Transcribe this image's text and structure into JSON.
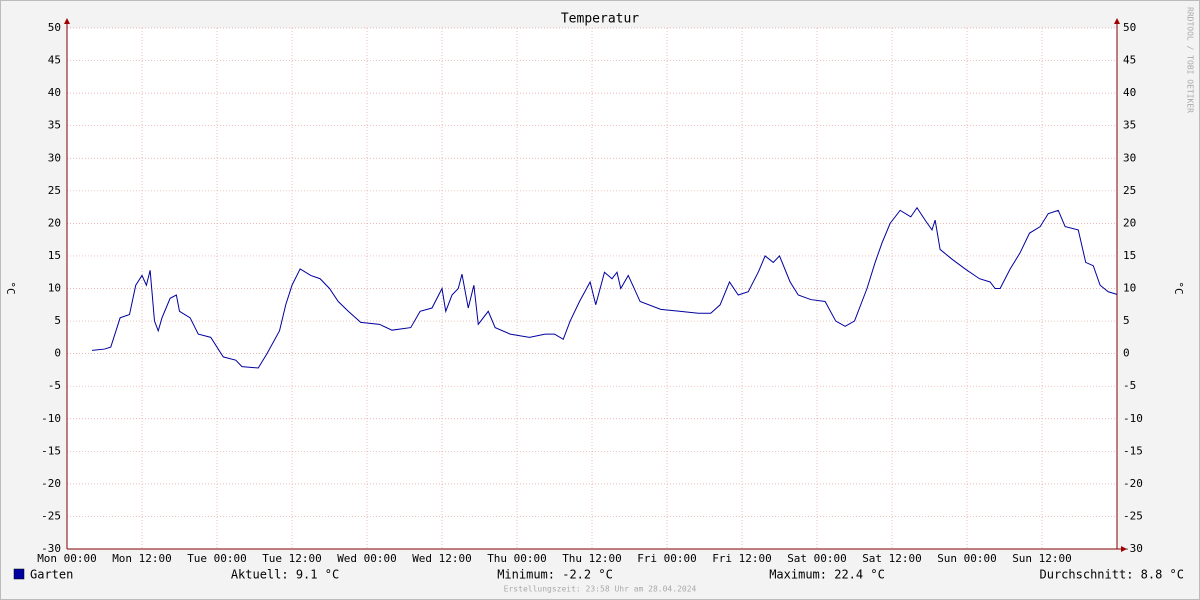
{
  "chart_data": {
    "type": "line",
    "title": "Temperatur",
    "ylabel": "°C",
    "y2label": "°C",
    "watermark": "RRDTOOL / TOBI OETIKER",
    "footer": "Erstellungszeit: 23:58 Uhr am 28.04.2024",
    "xlim": [
      0,
      168
    ],
    "xticks": [
      {
        "value": 0,
        "label": "Mon 00:00"
      },
      {
        "value": 12,
        "label": "Mon 12:00"
      },
      {
        "value": 24,
        "label": "Tue 00:00"
      },
      {
        "value": 36,
        "label": "Tue 12:00"
      },
      {
        "value": 48,
        "label": "Wed 00:00"
      },
      {
        "value": 60,
        "label": "Wed 12:00"
      },
      {
        "value": 72,
        "label": "Thu 00:00"
      },
      {
        "value": 84,
        "label": "Thu 12:00"
      },
      {
        "value": 96,
        "label": "Fri 00:00"
      },
      {
        "value": 108,
        "label": "Fri 12:00"
      },
      {
        "value": 120,
        "label": "Sat 00:00"
      },
      {
        "value": 132,
        "label": "Sat 12:00"
      },
      {
        "value": 144,
        "label": "Sun 00:00"
      },
      {
        "value": 156,
        "label": "Sun 12:00"
      }
    ],
    "ylim": [
      -30,
      50
    ],
    "yticks": [
      -30,
      -25,
      -20,
      -15,
      -10,
      -5,
      0,
      5,
      10,
      15,
      20,
      25,
      30,
      35,
      40,
      45,
      50
    ],
    "grid": true,
    "x": [
      4,
      6,
      7,
      8.5,
      10,
      11,
      12,
      12.7,
      13.3,
      14,
      14.6,
      15.2,
      16.5,
      17.5,
      18,
      19.7,
      21,
      23,
      25,
      27,
      28,
      30.6,
      32,
      34,
      35,
      36,
      37.3,
      39,
      40.5,
      42,
      43.4,
      45,
      47,
      50,
      52,
      55,
      56.5,
      58.4,
      60,
      60.6,
      61.6,
      62.6,
      63.2,
      64.2,
      65.1,
      65.8,
      67.4,
      68.5,
      70.9,
      74,
      76.5,
      78,
      79.4,
      80.5,
      82,
      83.7,
      84.6,
      86,
      87.2,
      88,
      88.6,
      89.8,
      91.7,
      95,
      98,
      101,
      103,
      104.5,
      106,
      107.4,
      109,
      110.6,
      111.7,
      113,
      114,
      115.7,
      117,
      119,
      121.3,
      123,
      124.5,
      126,
      128,
      129.3,
      130.4,
      131.7,
      133.3,
      135,
      136,
      137.3,
      138.4,
      138.9,
      139.7,
      141.6,
      143.7,
      146,
      147.7,
      148.5,
      149.3,
      150.9,
      152.5,
      154,
      155.7,
      157,
      158.6,
      159.7,
      161.8,
      163,
      164.2,
      165.3,
      166.6,
      168
    ],
    "series": [
      {
        "name": "Garten",
        "color": "#0000a0",
        "values": [
          0.5,
          0.7,
          1,
          5.5,
          6,
          10.5,
          12,
          10.5,
          12.8,
          5,
          3.5,
          5.5,
          8.5,
          9,
          6.5,
          5.5,
          3,
          2.5,
          -0.5,
          -1,
          -2,
          -2.2,
          0,
          3.5,
          7.5,
          10.5,
          13,
          12,
          11.5,
          10,
          8,
          6.5,
          4.8,
          4.5,
          3.6,
          4,
          6.5,
          7,
          10,
          6.5,
          9,
          10,
          12.2,
          7,
          10.5,
          4.5,
          6.5,
          4,
          3,
          2.5,
          3,
          3,
          2.2,
          5,
          8,
          11,
          7.5,
          12.5,
          11.5,
          12.5,
          10,
          12,
          8,
          6.8,
          6.5,
          6.2,
          6.2,
          7.5,
          11,
          9,
          9.5,
          12.5,
          15,
          14,
          15,
          11,
          9,
          8.3,
          8,
          5,
          4.2,
          5,
          10,
          14,
          17,
          20,
          22,
          21,
          22.4,
          20.5,
          19,
          20.5,
          16,
          14.5,
          13,
          11.5,
          11,
          10,
          10,
          13,
          15.5,
          18.5,
          19.5,
          21.5,
          22,
          19.5,
          19,
          14,
          13.5,
          10.5,
          9.5,
          9.1
        ]
      }
    ],
    "stats": [
      "Aktuell: 9.1 °C",
      "Minimum: -2.2 °C",
      "Maximum: 22.4 °C",
      "Durchschnitt: 8.8 °C"
    ]
  }
}
